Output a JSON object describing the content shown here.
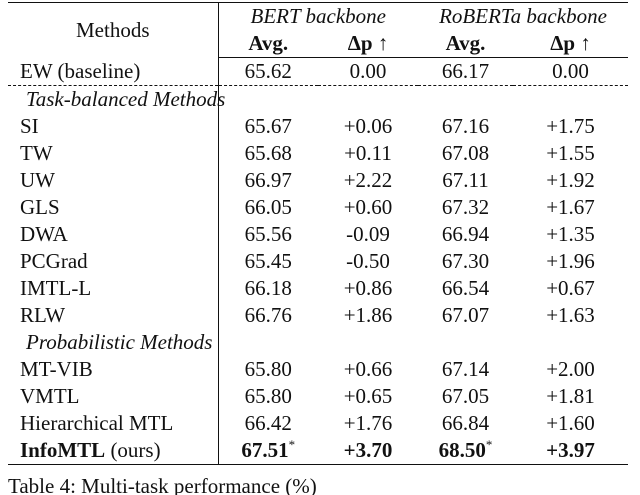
{
  "header": {
    "methods": "Methods",
    "groups": [
      "BERT backbone",
      "RoBERTa backbone"
    ],
    "metrics": [
      "Avg.",
      "Δp ↑"
    ]
  },
  "baseline": {
    "method": "EW (baseline)",
    "values": [
      "65.62",
      "0.00",
      "66.17",
      "0.00"
    ]
  },
  "sections": [
    {
      "title": "Task-balanced Methods",
      "rows": [
        {
          "method": "SI",
          "values": [
            "65.67",
            "+0.06",
            "67.16",
            "+1.75"
          ]
        },
        {
          "method": "TW",
          "values": [
            "65.68",
            "+0.11",
            "67.08",
            "+1.55"
          ]
        },
        {
          "method": "UW",
          "values": [
            "66.97",
            "+2.22",
            "67.11",
            "+1.92"
          ]
        },
        {
          "method": "GLS",
          "values": [
            "66.05",
            "+0.60",
            "67.32",
            "+1.67"
          ]
        },
        {
          "method": "DWA",
          "values": [
            "65.56",
            "-0.09",
            "66.94",
            "+1.35"
          ]
        },
        {
          "method": "PCGrad",
          "values": [
            "65.45",
            "-0.50",
            "67.30",
            "+1.96"
          ]
        },
        {
          "method": "IMTL-L",
          "values": [
            "66.18",
            "+0.86",
            "66.54",
            "+0.67"
          ]
        },
        {
          "method": "RLW",
          "values": [
            "66.76",
            "+1.86",
            "67.07",
            "+1.63"
          ]
        }
      ]
    },
    {
      "title": "Probabilistic Methods",
      "rows": [
        {
          "method": "MT-VIB",
          "values": [
            "65.80",
            "+0.66",
            "67.14",
            "+2.00"
          ]
        },
        {
          "method": "VMTL",
          "values": [
            "65.80",
            "+0.65",
            "67.05",
            "+1.81"
          ]
        },
        {
          "method": "Hierarchical MTL",
          "values": [
            "66.42",
            "+1.76",
            "66.84",
            "+1.60"
          ]
        }
      ]
    }
  ],
  "ours": {
    "method": "InfoMTL",
    "suffix": "(ours)",
    "values": [
      "67.51",
      "+3.70",
      "68.50",
      "+3.97"
    ],
    "marks": [
      "*",
      null,
      "*",
      null
    ]
  },
  "caption": "Table 4: Multi-task performance (%)"
}
